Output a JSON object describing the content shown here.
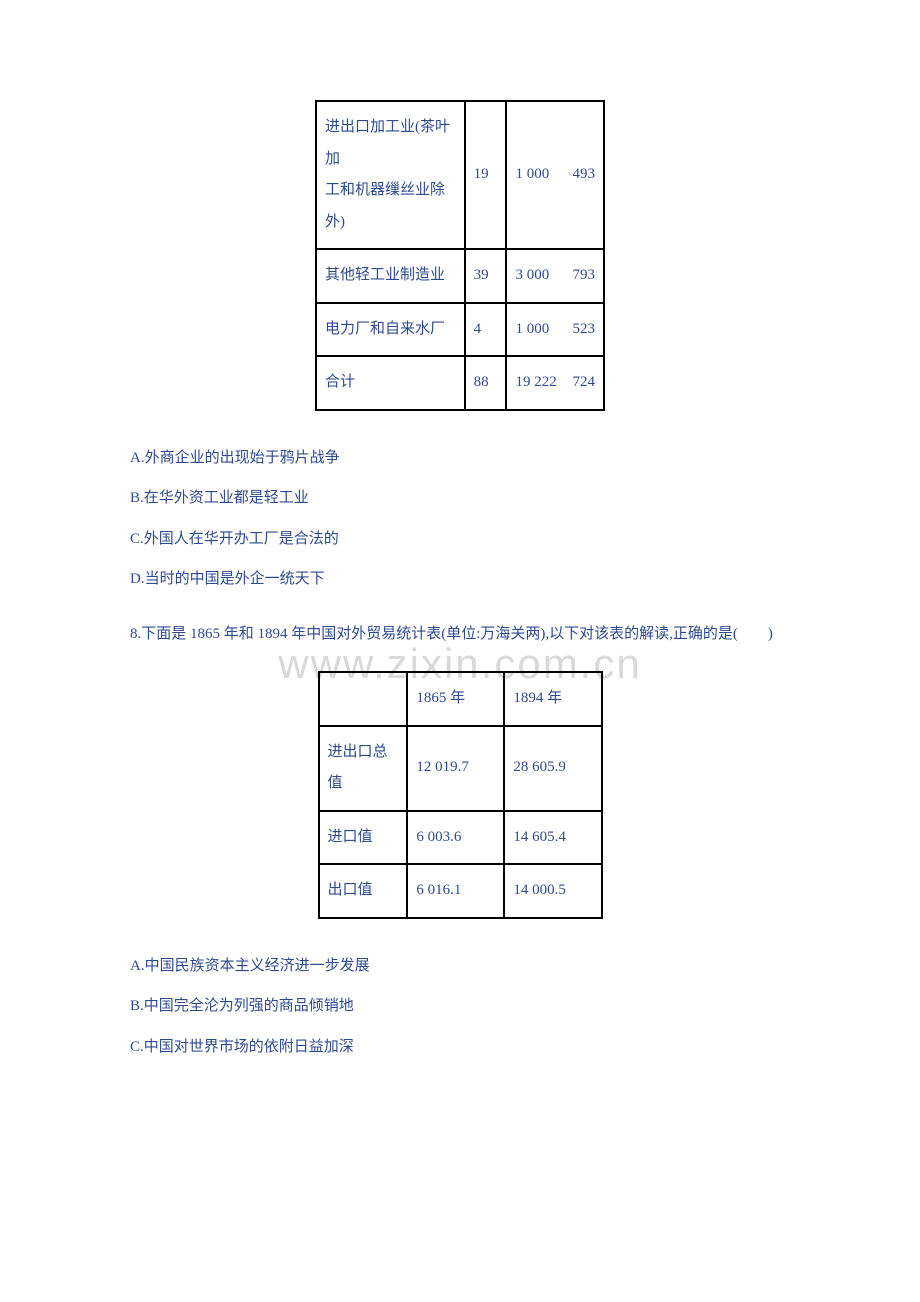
{
  "watermark": "www.zixin.com.cn",
  "colors": {
    "text": "#2e4b8f",
    "border": "#000000",
    "bg": "#ffffff",
    "watermark": "#d9d9d9"
  },
  "table1": {
    "rows": [
      {
        "label": "进出口加工业(茶叶加\n工和机器缫丝业除外)",
        "c2": "19",
        "c3a": "1 000",
        "c3b": "493"
      },
      {
        "label": "其他轻工业制造业",
        "c2": "39",
        "c3a": "3 000",
        "c3b": "793"
      },
      {
        "label": "电力厂和自来水厂",
        "c2": "4",
        "c3a": "1 000",
        "c3b": "523"
      },
      {
        "label": "合计",
        "c2": "88",
        "c3a": "19 222",
        "c3b": "724"
      }
    ]
  },
  "q7_options": {
    "a": "A.外商企业的出现始于鸦片战争",
    "b": "B.在华外资工业都是轻工业",
    "c": "C.外国人在华开办工厂是合法的",
    "d": "D.当时的中国是外企一统天下"
  },
  "q8": {
    "stem": "8.下面是 1865 年和 1894 年中国对外贸易统计表(单位:万海关两),以下对该表的解读,正确的是(　　)"
  },
  "table2": {
    "header": {
      "blank": "",
      "y1": "1865 年",
      "y2": "1894 年"
    },
    "rows": [
      {
        "label": "进出口总值",
        "y1": "12 019.7",
        "y2": "28 605.9"
      },
      {
        "label": "进口值",
        "y1": "6 003.6",
        "y2": "14 605.4"
      },
      {
        "label": "出口值",
        "y1": "6 016.1",
        "y2": "14 000.5"
      }
    ]
  },
  "q8_options": {
    "a": "A.中国民族资本主义经济进一步发展",
    "b": "B.中国完全沦为列强的商品倾销地",
    "c": "C.中国对世界市场的依附日益加深"
  }
}
